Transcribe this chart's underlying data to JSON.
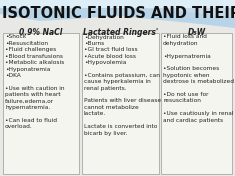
{
  "title": "ISOTONIC FLUIDS AND THEIR USES:",
  "title_fontsize": 10.5,
  "title_color": "#111111",
  "columns": [
    {
      "header": "0.9% NaCl",
      "body": "•Shock\n•Resuscitation\n•Fluid challenges\n•Blood transfusions\n•Metabolic alkalosis\n•Hyponatremia\n•DKA\n\n•Use with caution in\npatients with heart\nfailure,edema,or\nhypernatremia.\n\n•Can lead to fluid\noverload."
    },
    {
      "header": "Lactated Ringers'",
      "body": "•Dehydration\n•Burns\n•GI tract fluid loss\n•Acute blood loss\n•Hypovolemia\n\n•Contains potassium, can\ncause hyperkalemia in\nrenal patients.\n\nPatients with liver disease\ncannot metabolize\nlactate.\n\nLactate is converted into\nbicarb by liver."
    },
    {
      "header": "D₅W",
      "body": "•Fluid loss and\ndehydration\n\n•Hypernatremia\n\n•Solution becomes\nhypotonic when\ndextrose is metabolized\n\n•Do not use for\nresuscitation\n\n•Use cautiously in renal\nand cardiac patients"
    }
  ],
  "header_fontsize": 5.5,
  "body_fontsize": 4.2,
  "box_bg": "#f5f5f0",
  "box_edge": "#999999",
  "header_color": "#222222",
  "bg_color": "#e8e8e4",
  "title_bg": "#cce0ee",
  "swoosh_color": "#a0c8e0"
}
